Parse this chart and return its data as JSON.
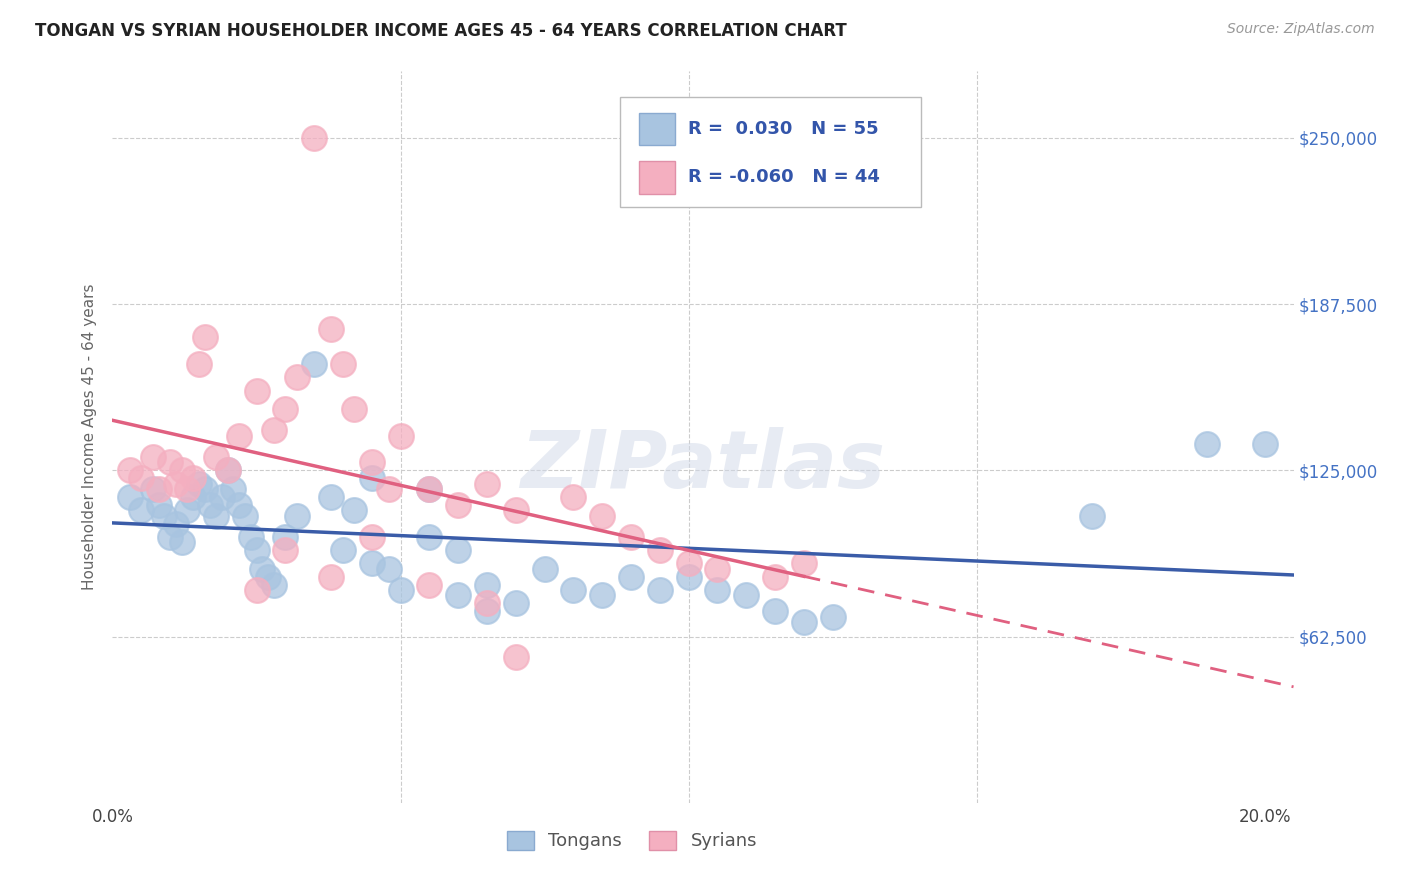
{
  "title": "TONGAN VS SYRIAN HOUSEHOLDER INCOME AGES 45 - 64 YEARS CORRELATION CHART",
  "source": "Source: ZipAtlas.com",
  "ylabel": "Householder Income Ages 45 - 64 years",
  "xlim": [
    0.0,
    0.205
  ],
  "ylim": [
    0,
    275000
  ],
  "y_ticks": [
    0,
    62500,
    125000,
    187500,
    250000
  ],
  "y_tick_labels_right": [
    "",
    "$62,500",
    "$125,000",
    "$187,500",
    "$250,000"
  ],
  "x_ticks": [
    0.0,
    0.05,
    0.1,
    0.15,
    0.2
  ],
  "x_tick_labels": [
    "0.0%",
    "",
    "",
    "",
    "20.0%"
  ],
  "tongan_color": "#a8c4e0",
  "syrian_color": "#f4afc0",
  "trend_tongan_color": "#3a5ca8",
  "trend_syrian_color": "#e06080",
  "background_color": "#ffffff",
  "grid_color": "#cccccc",
  "watermark": "ZIPatlas",
  "tongan_x": [
    0.003,
    0.005,
    0.007,
    0.008,
    0.009,
    0.01,
    0.011,
    0.012,
    0.013,
    0.014,
    0.015,
    0.016,
    0.017,
    0.018,
    0.019,
    0.02,
    0.021,
    0.022,
    0.023,
    0.024,
    0.025,
    0.026,
    0.027,
    0.028,
    0.03,
    0.032,
    0.035,
    0.038,
    0.04,
    0.042,
    0.045,
    0.048,
    0.05,
    0.055,
    0.06,
    0.065,
    0.07,
    0.075,
    0.08,
    0.085,
    0.09,
    0.095,
    0.1,
    0.105,
    0.11,
    0.115,
    0.12,
    0.125,
    0.045,
    0.055,
    0.06,
    0.065,
    0.17,
    0.19,
    0.2
  ],
  "tongan_y": [
    115000,
    110000,
    118000,
    112000,
    108000,
    100000,
    105000,
    98000,
    110000,
    115000,
    120000,
    118000,
    112000,
    108000,
    115000,
    125000,
    118000,
    112000,
    108000,
    100000,
    95000,
    88000,
    85000,
    82000,
    100000,
    108000,
    165000,
    115000,
    95000,
    110000,
    90000,
    88000,
    80000,
    100000,
    78000,
    82000,
    75000,
    88000,
    80000,
    78000,
    85000,
    80000,
    85000,
    80000,
    78000,
    72000,
    68000,
    70000,
    122000,
    118000,
    95000,
    72000,
    108000,
    135000,
    135000
  ],
  "syrian_x": [
    0.003,
    0.005,
    0.007,
    0.008,
    0.01,
    0.011,
    0.012,
    0.013,
    0.014,
    0.015,
    0.016,
    0.018,
    0.02,
    0.022,
    0.025,
    0.028,
    0.03,
    0.032,
    0.035,
    0.038,
    0.04,
    0.042,
    0.045,
    0.048,
    0.05,
    0.055,
    0.06,
    0.065,
    0.07,
    0.08,
    0.085,
    0.09,
    0.095,
    0.1,
    0.105,
    0.115,
    0.12,
    0.025,
    0.03,
    0.038,
    0.045,
    0.055,
    0.065,
    0.07
  ],
  "syrian_y": [
    125000,
    122000,
    130000,
    118000,
    128000,
    120000,
    125000,
    118000,
    122000,
    165000,
    175000,
    130000,
    125000,
    138000,
    155000,
    140000,
    148000,
    160000,
    250000,
    178000,
    165000,
    148000,
    128000,
    118000,
    138000,
    118000,
    112000,
    120000,
    110000,
    115000,
    108000,
    100000,
    95000,
    90000,
    88000,
    85000,
    90000,
    80000,
    95000,
    85000,
    100000,
    82000,
    75000,
    55000
  ]
}
